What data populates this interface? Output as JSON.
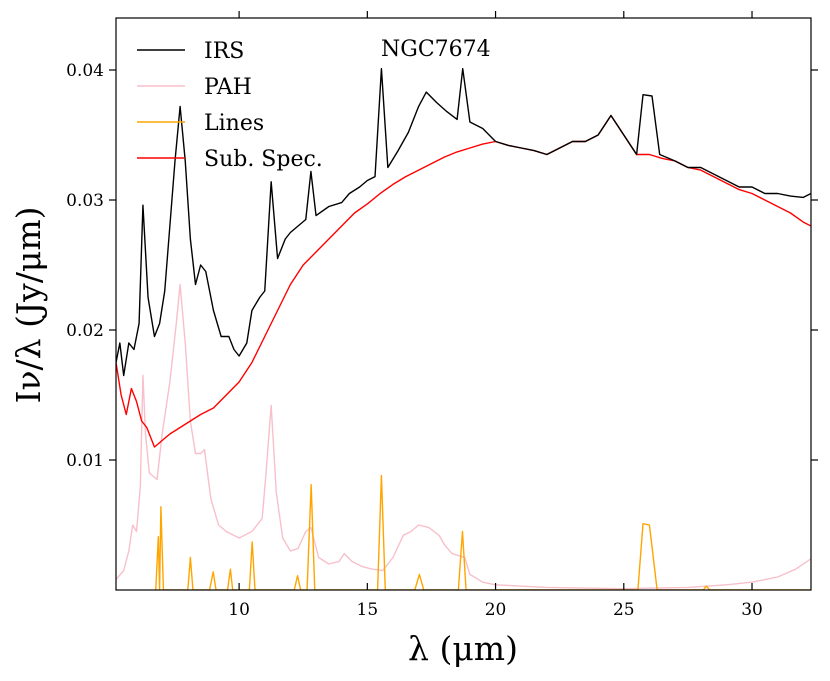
{
  "chart_data": {
    "type": "line",
    "title": "",
    "annotation": "NGC7674",
    "xlabel": "λ (μm)",
    "ylabel": "Iν/λ (Jy/μm)",
    "xlim": [
      5.2,
      32.3
    ],
    "ylim": [
      0.0,
      0.044
    ],
    "xticks": [
      10,
      15,
      20,
      25,
      30
    ],
    "xtick_labels": [
      "10",
      "15",
      "20",
      "25",
      "30"
    ],
    "yticks": [
      0.01,
      0.02,
      0.03,
      0.04
    ],
    "ytick_labels": [
      "0.01",
      "0.02",
      "0.03",
      "0.04"
    ],
    "grid": false,
    "legend_position": "top-left",
    "series": [
      {
        "name": "IRS",
        "color": "#000000",
        "points": [
          [
            5.2,
            0.0175
          ],
          [
            5.35,
            0.019
          ],
          [
            5.5,
            0.0165
          ],
          [
            5.7,
            0.019
          ],
          [
            5.9,
            0.0185
          ],
          [
            6.1,
            0.0205
          ],
          [
            6.25,
            0.0296
          ],
          [
            6.45,
            0.0225
          ],
          [
            6.7,
            0.0195
          ],
          [
            6.9,
            0.0205
          ],
          [
            7.1,
            0.023
          ],
          [
            7.3,
            0.028
          ],
          [
            7.5,
            0.033
          ],
          [
            7.7,
            0.0372
          ],
          [
            7.9,
            0.033
          ],
          [
            8.1,
            0.027
          ],
          [
            8.3,
            0.0235
          ],
          [
            8.5,
            0.025
          ],
          [
            8.7,
            0.0245
          ],
          [
            9.0,
            0.0215
          ],
          [
            9.3,
            0.0195
          ],
          [
            9.6,
            0.0195
          ],
          [
            9.8,
            0.0185
          ],
          [
            10.0,
            0.018
          ],
          [
            10.3,
            0.019
          ],
          [
            10.5,
            0.0215
          ],
          [
            10.8,
            0.0225
          ],
          [
            11.0,
            0.023
          ],
          [
            11.25,
            0.0314
          ],
          [
            11.5,
            0.0255
          ],
          [
            11.8,
            0.027
          ],
          [
            12.0,
            0.0275
          ],
          [
            12.3,
            0.028
          ],
          [
            12.6,
            0.0285
          ],
          [
            12.8,
            0.0322
          ],
          [
            13.0,
            0.0288
          ],
          [
            13.5,
            0.0295
          ],
          [
            14.0,
            0.0298
          ],
          [
            14.3,
            0.0305
          ],
          [
            14.7,
            0.031
          ],
          [
            15.0,
            0.0315
          ],
          [
            15.3,
            0.0318
          ],
          [
            15.55,
            0.0401
          ],
          [
            15.8,
            0.0325
          ],
          [
            16.2,
            0.0338
          ],
          [
            16.6,
            0.0352
          ],
          [
            17.0,
            0.0372
          ],
          [
            17.3,
            0.0383
          ],
          [
            17.7,
            0.0375
          ],
          [
            18.1,
            0.0368
          ],
          [
            18.5,
            0.0362
          ],
          [
            18.72,
            0.0401
          ],
          [
            19.0,
            0.036
          ],
          [
            19.5,
            0.0355
          ],
          [
            20.0,
            0.0345
          ],
          [
            20.5,
            0.0342
          ],
          [
            21.0,
            0.034
          ],
          [
            21.5,
            0.0338
          ],
          [
            22.0,
            0.0335
          ],
          [
            22.5,
            0.034
          ],
          [
            23.0,
            0.0345
          ],
          [
            23.5,
            0.0345
          ],
          [
            24.0,
            0.035
          ],
          [
            24.5,
            0.0365
          ],
          [
            25.0,
            0.035
          ],
          [
            25.5,
            0.0335
          ],
          [
            25.75,
            0.0381
          ],
          [
            26.1,
            0.038
          ],
          [
            26.4,
            0.0335
          ],
          [
            27.0,
            0.033
          ],
          [
            27.5,
            0.0325
          ],
          [
            28.0,
            0.0325
          ],
          [
            28.5,
            0.032
          ],
          [
            29.0,
            0.0315
          ],
          [
            29.5,
            0.031
          ],
          [
            30.0,
            0.031
          ],
          [
            30.5,
            0.0305
          ],
          [
            31.0,
            0.0305
          ],
          [
            31.5,
            0.0303
          ],
          [
            32.0,
            0.0302
          ],
          [
            32.3,
            0.0305
          ]
        ]
      },
      {
        "name": "PAH",
        "color": "#f7c0cb",
        "points": [
          [
            5.2,
            0.0008
          ],
          [
            5.5,
            0.0015
          ],
          [
            5.7,
            0.003
          ],
          [
            5.85,
            0.005
          ],
          [
            6.0,
            0.0045
          ],
          [
            6.15,
            0.008
          ],
          [
            6.25,
            0.0165
          ],
          [
            6.35,
            0.012
          ],
          [
            6.5,
            0.009
          ],
          [
            6.8,
            0.0085
          ],
          [
            7.0,
            0.012
          ],
          [
            7.3,
            0.016
          ],
          [
            7.55,
            0.0205
          ],
          [
            7.7,
            0.0235
          ],
          [
            7.9,
            0.019
          ],
          [
            8.1,
            0.013
          ],
          [
            8.3,
            0.0105
          ],
          [
            8.5,
            0.0105
          ],
          [
            8.65,
            0.0108
          ],
          [
            8.9,
            0.007
          ],
          [
            9.2,
            0.005
          ],
          [
            9.5,
            0.0045
          ],
          [
            10.0,
            0.004
          ],
          [
            10.5,
            0.0045
          ],
          [
            10.9,
            0.0055
          ],
          [
            11.05,
            0.009
          ],
          [
            11.25,
            0.0142
          ],
          [
            11.45,
            0.0075
          ],
          [
            11.7,
            0.004
          ],
          [
            12.0,
            0.003
          ],
          [
            12.3,
            0.0032
          ],
          [
            12.6,
            0.0045
          ],
          [
            12.8,
            0.0048
          ],
          [
            13.1,
            0.0025
          ],
          [
            13.5,
            0.002
          ],
          [
            13.9,
            0.0022
          ],
          [
            14.1,
            0.0028
          ],
          [
            14.4,
            0.0022
          ],
          [
            14.8,
            0.0018
          ],
          [
            15.2,
            0.0016
          ],
          [
            15.6,
            0.0015
          ],
          [
            16.0,
            0.0025
          ],
          [
            16.4,
            0.0042
          ],
          [
            16.7,
            0.0045
          ],
          [
            17.0,
            0.005
          ],
          [
            17.4,
            0.0048
          ],
          [
            17.8,
            0.0042
          ],
          [
            18.0,
            0.0035
          ],
          [
            18.3,
            0.0028
          ],
          [
            18.8,
            0.0025
          ],
          [
            19.0,
            0.0012
          ],
          [
            19.5,
            0.0006
          ],
          [
            20.0,
            0.0004
          ],
          [
            22.0,
            0.0002
          ],
          [
            25.0,
            0.0001
          ],
          [
            27.5,
            0.0002
          ],
          [
            29.0,
            0.0004
          ],
          [
            30.0,
            0.0006
          ],
          [
            31.0,
            0.001
          ],
          [
            31.7,
            0.0016
          ],
          [
            32.3,
            0.0024
          ]
        ]
      },
      {
        "name": "Lines",
        "color": "#ffa500",
        "points": [
          [
            6.75,
            0.0
          ],
          [
            6.85,
            0.0041
          ],
          [
            6.9,
            0.0
          ],
          [
            6.95,
            0.0064
          ],
          [
            7.05,
            0.0
          ],
          [
            8.0,
            0.0
          ],
          [
            8.1,
            0.0025
          ],
          [
            8.2,
            0.0
          ],
          [
            8.85,
            0.0
          ],
          [
            8.99,
            0.0014
          ],
          [
            9.1,
            0.0
          ],
          [
            9.55,
            0.0
          ],
          [
            9.66,
            0.0016
          ],
          [
            9.75,
            0.0
          ],
          [
            10.4,
            0.0
          ],
          [
            10.51,
            0.0037
          ],
          [
            10.62,
            0.0
          ],
          [
            12.15,
            0.0
          ],
          [
            12.28,
            0.0011
          ],
          [
            12.4,
            0.0
          ],
          [
            12.65,
            0.0
          ],
          [
            12.81,
            0.0081
          ],
          [
            12.95,
            0.0
          ],
          [
            15.4,
            0.0
          ],
          [
            15.55,
            0.0088
          ],
          [
            15.7,
            0.0
          ],
          [
            16.85,
            0.0
          ],
          [
            17.03,
            0.0012
          ],
          [
            17.2,
            0.0
          ],
          [
            18.55,
            0.0
          ],
          [
            18.71,
            0.0045
          ],
          [
            18.85,
            0.0
          ],
          [
            25.55,
            0.0
          ],
          [
            25.75,
            0.0051
          ],
          [
            26.0,
            0.005
          ],
          [
            26.3,
            0.0
          ],
          [
            28.1,
            0.0
          ],
          [
            28.22,
            0.0003
          ],
          [
            28.35,
            0.0
          ],
          [
            32.3,
            0.0
          ]
        ]
      },
      {
        "name": "Sub. Spec.",
        "color": "#ff0000",
        "points": [
          [
            5.2,
            0.0175
          ],
          [
            5.4,
            0.015
          ],
          [
            5.6,
            0.0135
          ],
          [
            5.8,
            0.0155
          ],
          [
            6.0,
            0.0145
          ],
          [
            6.2,
            0.013
          ],
          [
            6.4,
            0.0125
          ],
          [
            6.7,
            0.011
          ],
          [
            7.0,
            0.0115
          ],
          [
            7.3,
            0.012
          ],
          [
            7.7,
            0.0125
          ],
          [
            8.1,
            0.013
          ],
          [
            8.5,
            0.0135
          ],
          [
            9.0,
            0.014
          ],
          [
            9.5,
            0.015
          ],
          [
            10.0,
            0.016
          ],
          [
            10.5,
            0.0175
          ],
          [
            11.0,
            0.0195
          ],
          [
            11.5,
            0.0215
          ],
          [
            12.0,
            0.0235
          ],
          [
            12.5,
            0.025
          ],
          [
            13.0,
            0.026
          ],
          [
            13.5,
            0.027
          ],
          [
            14.0,
            0.028
          ],
          [
            14.5,
            0.029
          ],
          [
            15.0,
            0.0297
          ],
          [
            15.5,
            0.0305
          ],
          [
            16.0,
            0.0312
          ],
          [
            16.5,
            0.0318
          ],
          [
            17.0,
            0.0323
          ],
          [
            17.5,
            0.0328
          ],
          [
            18.0,
            0.0333
          ],
          [
            18.5,
            0.0337
          ],
          [
            19.0,
            0.034
          ],
          [
            19.5,
            0.0343
          ],
          [
            20.0,
            0.0345
          ],
          [
            20.5,
            0.0342
          ],
          [
            21.0,
            0.034
          ],
          [
            21.5,
            0.0338
          ],
          [
            22.0,
            0.0335
          ],
          [
            22.5,
            0.034
          ],
          [
            23.0,
            0.0345
          ],
          [
            23.5,
            0.0345
          ],
          [
            24.0,
            0.035
          ],
          [
            24.5,
            0.0365
          ],
          [
            25.0,
            0.035
          ],
          [
            25.5,
            0.0335
          ],
          [
            26.0,
            0.0335
          ],
          [
            26.5,
            0.0332
          ],
          [
            27.0,
            0.033
          ],
          [
            27.5,
            0.0325
          ],
          [
            28.0,
            0.0323
          ],
          [
            28.5,
            0.0318
          ],
          [
            29.0,
            0.0313
          ],
          [
            29.5,
            0.0308
          ],
          [
            30.0,
            0.0305
          ],
          [
            30.5,
            0.03
          ],
          [
            31.0,
            0.0295
          ],
          [
            31.5,
            0.029
          ],
          [
            32.0,
            0.0283
          ],
          [
            32.3,
            0.028
          ]
        ]
      }
    ]
  }
}
